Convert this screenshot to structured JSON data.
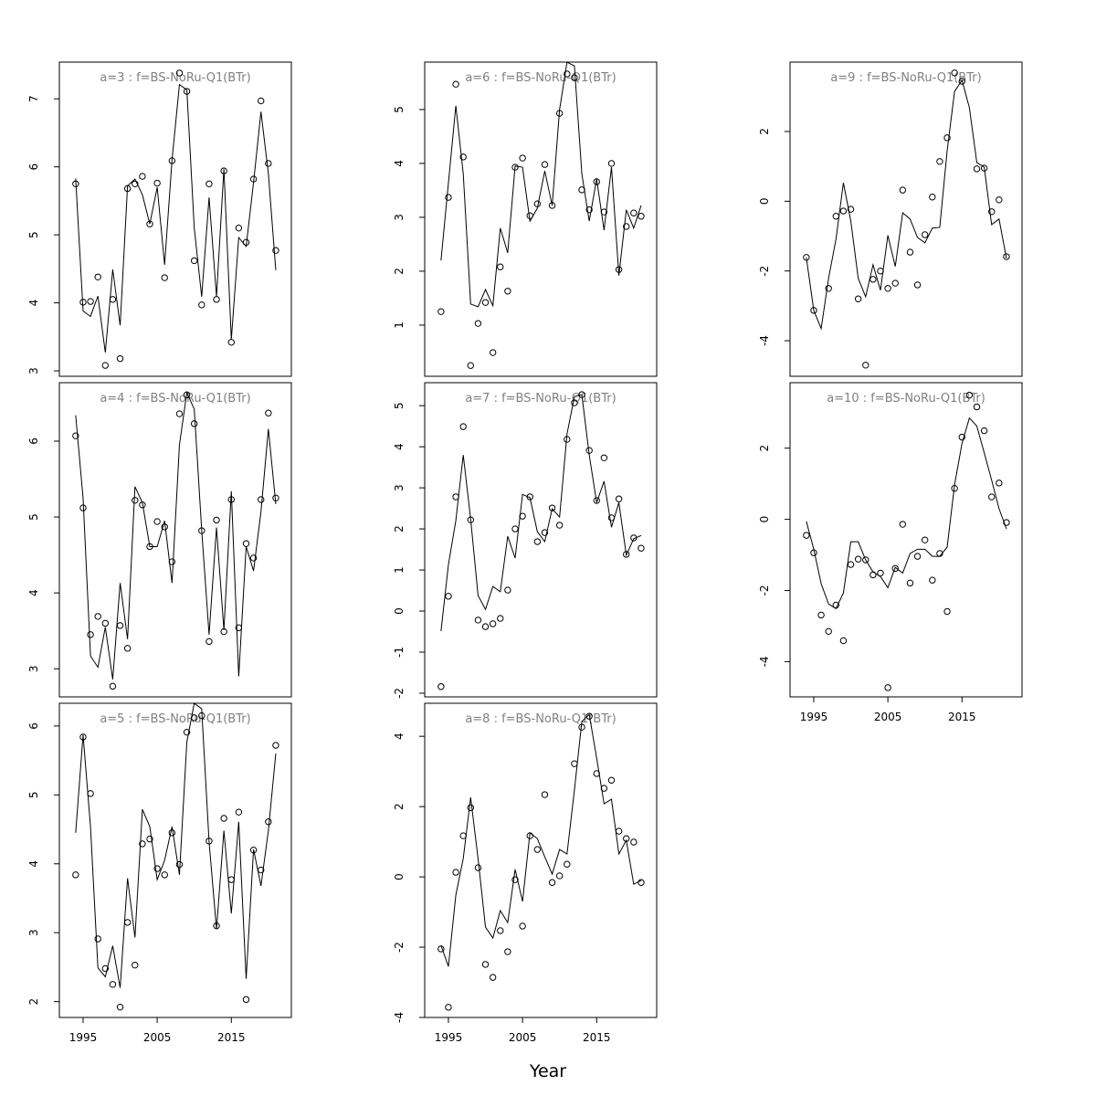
{
  "xlabel": "Year",
  "chart_data": [
    {
      "type": "line",
      "title": "a=3  :  f=BS-NoRu-Q1(BTr)",
      "x": [
        1994,
        1995,
        1996,
        1997,
        1998,
        1999,
        2000,
        2001,
        2002,
        2003,
        2004,
        2005,
        2006,
        2007,
        2008,
        2009,
        2010,
        2011,
        2012,
        2013,
        2014,
        2015,
        2016,
        2017,
        2018,
        2019,
        2020,
        2021
      ],
      "xlim": [
        1991.8,
        2023.1
      ],
      "ylim": [
        2.92,
        7.54
      ],
      "yticks": [
        3,
        4,
        5,
        6,
        7
      ],
      "series": [
        {
          "style": "points",
          "color": "#000000",
          "values": [
            5.75,
            4.01,
            4.02,
            4.38,
            3.08,
            4.05,
            3.18,
            5.68,
            5.75,
            5.86,
            5.16,
            5.76,
            4.37,
            6.09,
            7.38,
            7.11,
            4.62,
            3.97,
            5.75,
            4.05,
            5.94,
            3.42,
            5.1,
            4.89,
            5.82,
            6.97,
            6.05,
            4.77
          ]
        },
        {
          "style": "line",
          "color": "#000000",
          "values": [
            5.83,
            3.88,
            3.8,
            4.1,
            3.27,
            4.49,
            3.67,
            5.72,
            5.82,
            5.59,
            5.16,
            5.7,
            4.56,
            6.1,
            7.21,
            7.13,
            5.1,
            4.09,
            5.55,
            4.09,
            5.97,
            3.46,
            4.96,
            4.83,
            5.77,
            6.81,
            5.9,
            4.48
          ]
        }
      ]
    },
    {
      "type": "line",
      "title": "a=4  :  f=BS-NoRu-Q1(BTr)",
      "x": [
        1994,
        1995,
        1996,
        1997,
        1998,
        1999,
        2000,
        2001,
        2002,
        2003,
        2004,
        2005,
        2006,
        2007,
        2008,
        2009,
        2010,
        2011,
        2012,
        2013,
        2014,
        2015,
        2016,
        2017,
        2018,
        2019,
        2020,
        2021
      ],
      "xlim": [
        1991.8,
        2023.1
      ],
      "ylim": [
        2.63,
        6.77
      ],
      "yticks": [
        3,
        4,
        5,
        6
      ],
      "series": [
        {
          "style": "points",
          "color": "#000000",
          "values": [
            6.07,
            5.12,
            3.45,
            3.69,
            3.6,
            2.77,
            3.57,
            3.27,
            5.22,
            5.16,
            4.61,
            4.94,
            4.87,
            4.41,
            6.36,
            6.61,
            6.23,
            4.82,
            3.36,
            4.96,
            3.49,
            5.23,
            3.54,
            4.65,
            4.46,
            5.23,
            6.37,
            5.25
          ]
        },
        {
          "style": "line",
          "color": "#000000",
          "values": [
            6.34,
            5.25,
            3.17,
            3.02,
            3.55,
            2.86,
            4.13,
            3.39,
            5.4,
            5.19,
            4.61,
            4.61,
            4.95,
            4.13,
            5.95,
            6.64,
            6.42,
            4.83,
            3.45,
            4.86,
            3.51,
            5.34,
            2.9,
            4.61,
            4.29,
            5.07,
            6.16,
            5.17
          ]
        }
      ]
    },
    {
      "type": "line",
      "title": "a=5  :  f=BS-NoRu-Q1(BTr)",
      "x": [
        1994,
        1995,
        1996,
        1997,
        1998,
        1999,
        2000,
        2001,
        2002,
        2003,
        2004,
        2005,
        2006,
        2007,
        2008,
        2009,
        2010,
        2011,
        2012,
        2013,
        2014,
        2015,
        2016,
        2017,
        2018,
        2019,
        2020,
        2021
      ],
      "xlim": [
        1991.8,
        2023.1
      ],
      "xticks": [
        1995,
        2005,
        2015
      ],
      "ylim": [
        1.77,
        6.33
      ],
      "yticks": [
        2,
        3,
        4,
        5,
        6
      ],
      "series": [
        {
          "style": "points",
          "color": "#000000",
          "values": [
            3.84,
            5.84,
            5.02,
            2.91,
            2.48,
            2.25,
            1.92,
            3.15,
            2.53,
            4.29,
            4.36,
            3.93,
            3.84,
            4.45,
            3.99,
            5.91,
            6.12,
            6.15,
            4.33,
            3.1,
            4.66,
            3.77,
            4.75,
            2.03,
            4.2,
            3.91,
            4.61,
            5.72
          ]
        },
        {
          "style": "line",
          "color": "#000000",
          "values": [
            4.45,
            5.87,
            4.54,
            2.49,
            2.36,
            2.81,
            2.2,
            3.79,
            2.93,
            4.79,
            4.54,
            3.77,
            4.05,
            4.54,
            3.84,
            5.77,
            6.33,
            6.25,
            4.32,
            3.05,
            4.48,
            3.28,
            4.61,
            2.33,
            4.21,
            3.68,
            4.48,
            5.6
          ]
        }
      ]
    },
    {
      "type": "line",
      "title": "a=6  :  f=BS-NoRu-Q1(BTr)",
      "x": [
        1994,
        1995,
        1996,
        1997,
        1998,
        1999,
        2000,
        2001,
        2002,
        2003,
        2004,
        2005,
        2006,
        2007,
        2008,
        2009,
        2010,
        2011,
        2012,
        2013,
        2014,
        2015,
        2016,
        2017,
        2018,
        2019,
        2020,
        2021
      ],
      "xlim": [
        1991.8,
        2023.1
      ],
      "ylim": [
        0.05,
        5.88
      ],
      "yticks": [
        1,
        2,
        3,
        4,
        5
      ],
      "series": [
        {
          "style": "points",
          "color": "#000000",
          "values": [
            1.25,
            3.37,
            5.47,
            4.12,
            0.25,
            1.03,
            1.42,
            0.49,
            2.08,
            1.63,
            3.93,
            4.1,
            3.03,
            3.25,
            3.98,
            3.22,
            4.93,
            5.66,
            5.59,
            3.51,
            3.14,
            3.66,
            3.1,
            4.0,
            2.03,
            2.83,
            3.08,
            3.02
          ]
        },
        {
          "style": "line",
          "color": "#000000",
          "values": [
            2.2,
            3.64,
            5.07,
            3.81,
            1.39,
            1.34,
            1.66,
            1.36,
            2.8,
            2.34,
            3.95,
            3.93,
            2.93,
            3.17,
            3.86,
            3.22,
            5.0,
            5.88,
            5.81,
            3.81,
            2.93,
            3.71,
            2.76,
            3.93,
            1.92,
            3.14,
            2.8,
            3.22
          ]
        }
      ]
    },
    {
      "type": "line",
      "title": "a=7  :  f=BS-NoRu-Q1(BTr)",
      "x": [
        1994,
        1995,
        1996,
        1997,
        1998,
        1999,
        2000,
        2001,
        2002,
        2003,
        2004,
        2005,
        2006,
        2007,
        2008,
        2009,
        2010,
        2011,
        2012,
        2013,
        2014,
        2015,
        2016,
        2017,
        2018,
        2019,
        2020,
        2021
      ],
      "xlim": [
        1991.8,
        2023.1
      ],
      "ylim": [
        -2.09,
        5.56
      ],
      "yticks": [
        -2,
        -1,
        0,
        1,
        2,
        3,
        4,
        5
      ],
      "series": [
        {
          "style": "points",
          "color": "#000000",
          "values": [
            -1.84,
            0.36,
            2.78,
            4.49,
            2.22,
            -0.22,
            -0.38,
            -0.31,
            -0.18,
            0.51,
            2.0,
            2.31,
            2.78,
            1.69,
            1.91,
            2.51,
            2.09,
            4.18,
            5.07,
            5.27,
            3.91,
            2.69,
            3.73,
            2.27,
            2.73,
            1.38,
            1.78,
            1.53
          ]
        },
        {
          "style": "line",
          "color": "#000000",
          "values": [
            -0.49,
            1.13,
            2.2,
            3.8,
            2.24,
            0.38,
            0.04,
            0.6,
            0.47,
            1.82,
            1.29,
            2.84,
            2.76,
            1.93,
            1.69,
            2.49,
            2.29,
            4.31,
            5.22,
            5.27,
            3.8,
            2.64,
            3.16,
            2.04,
            2.64,
            1.36,
            1.76,
            1.84
          ]
        }
      ]
    },
    {
      "type": "line",
      "title": "a=8  :  f=BS-NoRu-Q1(BTr)",
      "x": [
        1994,
        1995,
        1996,
        1997,
        1998,
        1999,
        2000,
        2001,
        2002,
        2003,
        2004,
        2005,
        2006,
        2007,
        2008,
        2009,
        2010,
        2011,
        2012,
        2013,
        2014,
        2015,
        2016,
        2017,
        2018,
        2019,
        2020,
        2021
      ],
      "xlim": [
        1991.8,
        2023.1
      ],
      "xticks": [
        1995,
        2005,
        2015
      ],
      "ylim": [
        -4.0,
        4.94
      ],
      "yticks": [
        -4,
        -2,
        0,
        2,
        4
      ],
      "series": [
        {
          "style": "points",
          "color": "#000000",
          "values": [
            -2.05,
            -3.71,
            0.13,
            1.17,
            1.97,
            0.26,
            -2.49,
            -2.86,
            -1.53,
            -2.13,
            -0.08,
            -1.4,
            1.17,
            0.78,
            2.34,
            -0.16,
            0.03,
            0.36,
            3.22,
            4.26,
            4.57,
            2.94,
            2.52,
            2.75,
            1.3,
            1.09,
            0.99,
            -0.16
          ]
        },
        {
          "style": "line",
          "color": "#000000",
          "values": [
            -1.95,
            -2.55,
            -0.52,
            0.52,
            2.26,
            0.52,
            -1.43,
            -1.74,
            -0.96,
            -1.3,
            0.21,
            -0.7,
            1.25,
            1.09,
            0.57,
            0.08,
            0.78,
            0.65,
            2.47,
            4.42,
            4.62,
            3.38,
            2.08,
            2.21,
            0.65,
            1.04,
            -0.21,
            -0.1
          ]
        }
      ]
    },
    {
      "type": "line",
      "title": "a=9  :  f=BS-NoRu-Q1(BTr)",
      "x": [
        1994,
        1995,
        1996,
        1997,
        1998,
        1999,
        2000,
        2001,
        2002,
        2003,
        2004,
        2005,
        2006,
        2007,
        2008,
        2009,
        2010,
        2011,
        2012,
        2013,
        2014,
        2015,
        2016,
        2017,
        2018,
        2019,
        2020,
        2021
      ],
      "xlim": [
        1991.8,
        2023.1
      ],
      "ylim": [
        -5.02,
        3.99
      ],
      "yticks": [
        -4,
        -2,
        0,
        2
      ],
      "series": [
        {
          "style": "points",
          "color": "#000000",
          "values": [
            -1.61,
            -3.13,
            null,
            -2.5,
            -0.43,
            -0.28,
            -0.23,
            -2.8,
            -4.7,
            -2.24,
            -2.0,
            -2.5,
            -2.35,
            0.32,
            -1.46,
            -2.4,
            -0.96,
            0.12,
            1.14,
            1.82,
            3.68,
            3.44,
            null,
            0.93,
            0.95,
            -0.3,
            0.04,
            -1.59
          ]
        },
        {
          "style": "line",
          "color": "#000000",
          "values": [
            -1.61,
            -3.13,
            -3.65,
            -2.21,
            -1.09,
            0.53,
            -0.57,
            -2.21,
            -2.74,
            -1.82,
            -2.55,
            -0.98,
            -1.87,
            -0.33,
            -0.51,
            -1.04,
            -1.19,
            -0.77,
            -0.75,
            1.45,
            3.15,
            3.47,
            2.68,
            1.11,
            0.98,
            -0.67,
            -0.51,
            -1.64
          ]
        }
      ]
    },
    {
      "type": "line",
      "title": "a=10  :  f=BS-NoRu-Q1(BTr)",
      "x": [
        1994,
        1995,
        1996,
        1997,
        1998,
        1999,
        2000,
        2001,
        2002,
        2003,
        2004,
        2005,
        2006,
        2007,
        2008,
        2009,
        2010,
        2011,
        2012,
        2013,
        2014,
        2015,
        2016,
        2017,
        2018,
        2019,
        2020,
        2021
      ],
      "xlim": [
        1991.8,
        2023.1
      ],
      "xticks": [
        1995,
        2005,
        2015
      ],
      "ylim": [
        -4.99,
        3.84
      ],
      "yticks": [
        -4,
        -2,
        0,
        2
      ],
      "series": [
        {
          "style": "points",
          "color": "#000000",
          "values": [
            -0.45,
            -0.94,
            -2.69,
            -3.15,
            -2.41,
            -3.41,
            -1.27,
            -1.12,
            -1.14,
            -1.56,
            -1.51,
            -4.73,
            -1.38,
            -0.14,
            -1.79,
            -1.04,
            -0.58,
            -1.71,
            -0.96,
            -2.59,
            0.87,
            2.31,
            3.49,
            3.16,
            2.49,
            0.63,
            1.02,
            -0.09
          ]
        },
        {
          "style": "line",
          "color": "#000000",
          "values": [
            -0.06,
            -0.84,
            -1.81,
            -2.38,
            -2.51,
            -2.07,
            -0.63,
            -0.63,
            -1.14,
            -1.48,
            -1.61,
            -1.92,
            -1.35,
            -1.51,
            -0.96,
            -0.84,
            -0.84,
            -1.04,
            -1.04,
            -0.78,
            0.97,
            2.13,
            2.85,
            2.62,
            1.87,
            1.1,
            0.3,
            -0.27
          ]
        }
      ]
    }
  ]
}
